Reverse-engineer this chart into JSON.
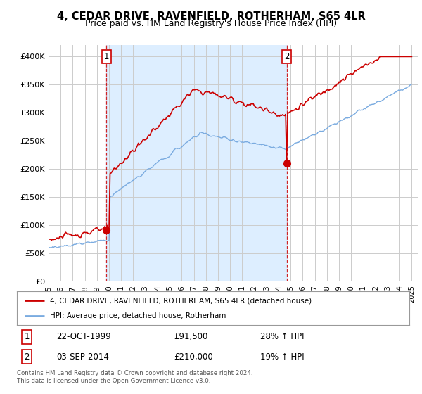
{
  "title": "4, CEDAR DRIVE, RAVENFIELD, ROTHERHAM, S65 4LR",
  "subtitle": "Price paid vs. HM Land Registry's House Price Index (HPI)",
  "background_color": "#ffffff",
  "grid_color": "#cccccc",
  "shading_color": "#ddeeff",
  "sale1_date": "22-OCT-1999",
  "sale1_price": 91500,
  "sale1_year": 1999.79,
  "sale1_hpi": "28% ↑ HPI",
  "sale2_date": "03-SEP-2014",
  "sale2_price": 210000,
  "sale2_year": 2014.67,
  "sale2_hpi": "19% ↑ HPI",
  "legend_line1": "4, CEDAR DRIVE, RAVENFIELD, ROTHERHAM, S65 4LR (detached house)",
  "legend_line2": "HPI: Average price, detached house, Rotherham",
  "footer": "Contains HM Land Registry data © Crown copyright and database right 2024.\nThis data is licensed under the Open Government Licence v3.0.",
  "red_color": "#cc0000",
  "blue_color": "#7aabe0",
  "ylim": [
    0,
    420000
  ],
  "yticks": [
    0,
    50000,
    100000,
    150000,
    200000,
    250000,
    300000,
    350000,
    400000
  ],
  "ytick_labels": [
    "£0",
    "£50K",
    "£100K",
    "£150K",
    "£200K",
    "£250K",
    "£300K",
    "£350K",
    "£400K"
  ],
  "xlim_start": 1995,
  "xlim_end": 2025.5
}
